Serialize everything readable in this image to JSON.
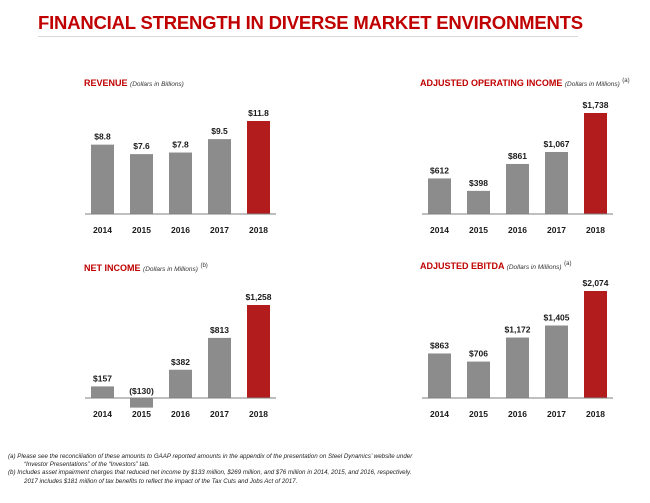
{
  "page": {
    "title": "FINANCIAL STRENGTH IN DIVERSE MARKET ENVIRONMENTS"
  },
  "colors": {
    "accent": "#c00000",
    "bar_gray": "#8c8c8c",
    "bar_red": "#b21c1c"
  },
  "chart_data": [
    {
      "type": "bar",
      "title": "REVENUE",
      "unit_label": "(Dollars in Billions)",
      "footnote_ref": "",
      "categories": [
        "2014",
        "2015",
        "2016",
        "2017",
        "2018"
      ],
      "values": [
        8.8,
        7.6,
        7.8,
        9.5,
        11.8
      ],
      "value_labels": [
        "$8.8",
        "$7.6",
        "$7.8",
        "$9.5",
        "$11.8"
      ],
      "highlight_index": 4,
      "ylim": [
        0,
        11.8
      ]
    },
    {
      "type": "bar",
      "title": "ADJUSTED OPERATING INCOME",
      "unit_label": "(Dollars in Millions)",
      "footnote_ref": "(a)",
      "categories": [
        "2014",
        "2015",
        "2016",
        "2017",
        "2018"
      ],
      "values": [
        612,
        398,
        861,
        1067,
        1738
      ],
      "value_labels": [
        "$612",
        "$398",
        "$861",
        "$1,067",
        "$1,738"
      ],
      "highlight_index": 4,
      "ylim": [
        0,
        1738
      ]
    },
    {
      "type": "bar",
      "title": "NET INCOME",
      "unit_label": "(Dollars in Millions)",
      "footnote_ref": "(b)",
      "categories": [
        "2014",
        "2015",
        "2016",
        "2017",
        "2018"
      ],
      "values": [
        157,
        -130,
        382,
        813,
        1258
      ],
      "value_labels": [
        "$157",
        "($130)",
        "$382",
        "$813",
        "$1,258"
      ],
      "highlight_index": 4,
      "ylim": [
        -130,
        1258
      ]
    },
    {
      "type": "bar",
      "title": "ADJUSTED EBITDA",
      "unit_label": "(Dollars in Millions)",
      "footnote_ref": "(a)",
      "categories": [
        "2014",
        "2015",
        "2016",
        "2017",
        "2018"
      ],
      "values": [
        863,
        706,
        1172,
        1405,
        2074
      ],
      "value_labels": [
        "$863",
        "$706",
        "$1,172",
        "$1,405",
        "$2,074"
      ],
      "highlight_index": 4,
      "ylim": [
        0,
        2074
      ]
    }
  ],
  "footnotes": {
    "a_line1": "(a)    Please see the reconciliation of these amounts to GAAP reported amounts in the appendix of the presentation on Steel Dynamics’ website under",
    "a_line2": "“Investor Presentations” of the “Investors” tab.",
    "b_line1": "(b)    Includes asset impairment charges that reduced net income by $133 million, $269 million, and $76 million in 2014, 2015, and 2016, respectively.",
    "b_line2": "2017 includes $181 million of tax benefits to reflect the impact of the Tax Cuts and Jobs Act of 2017."
  }
}
